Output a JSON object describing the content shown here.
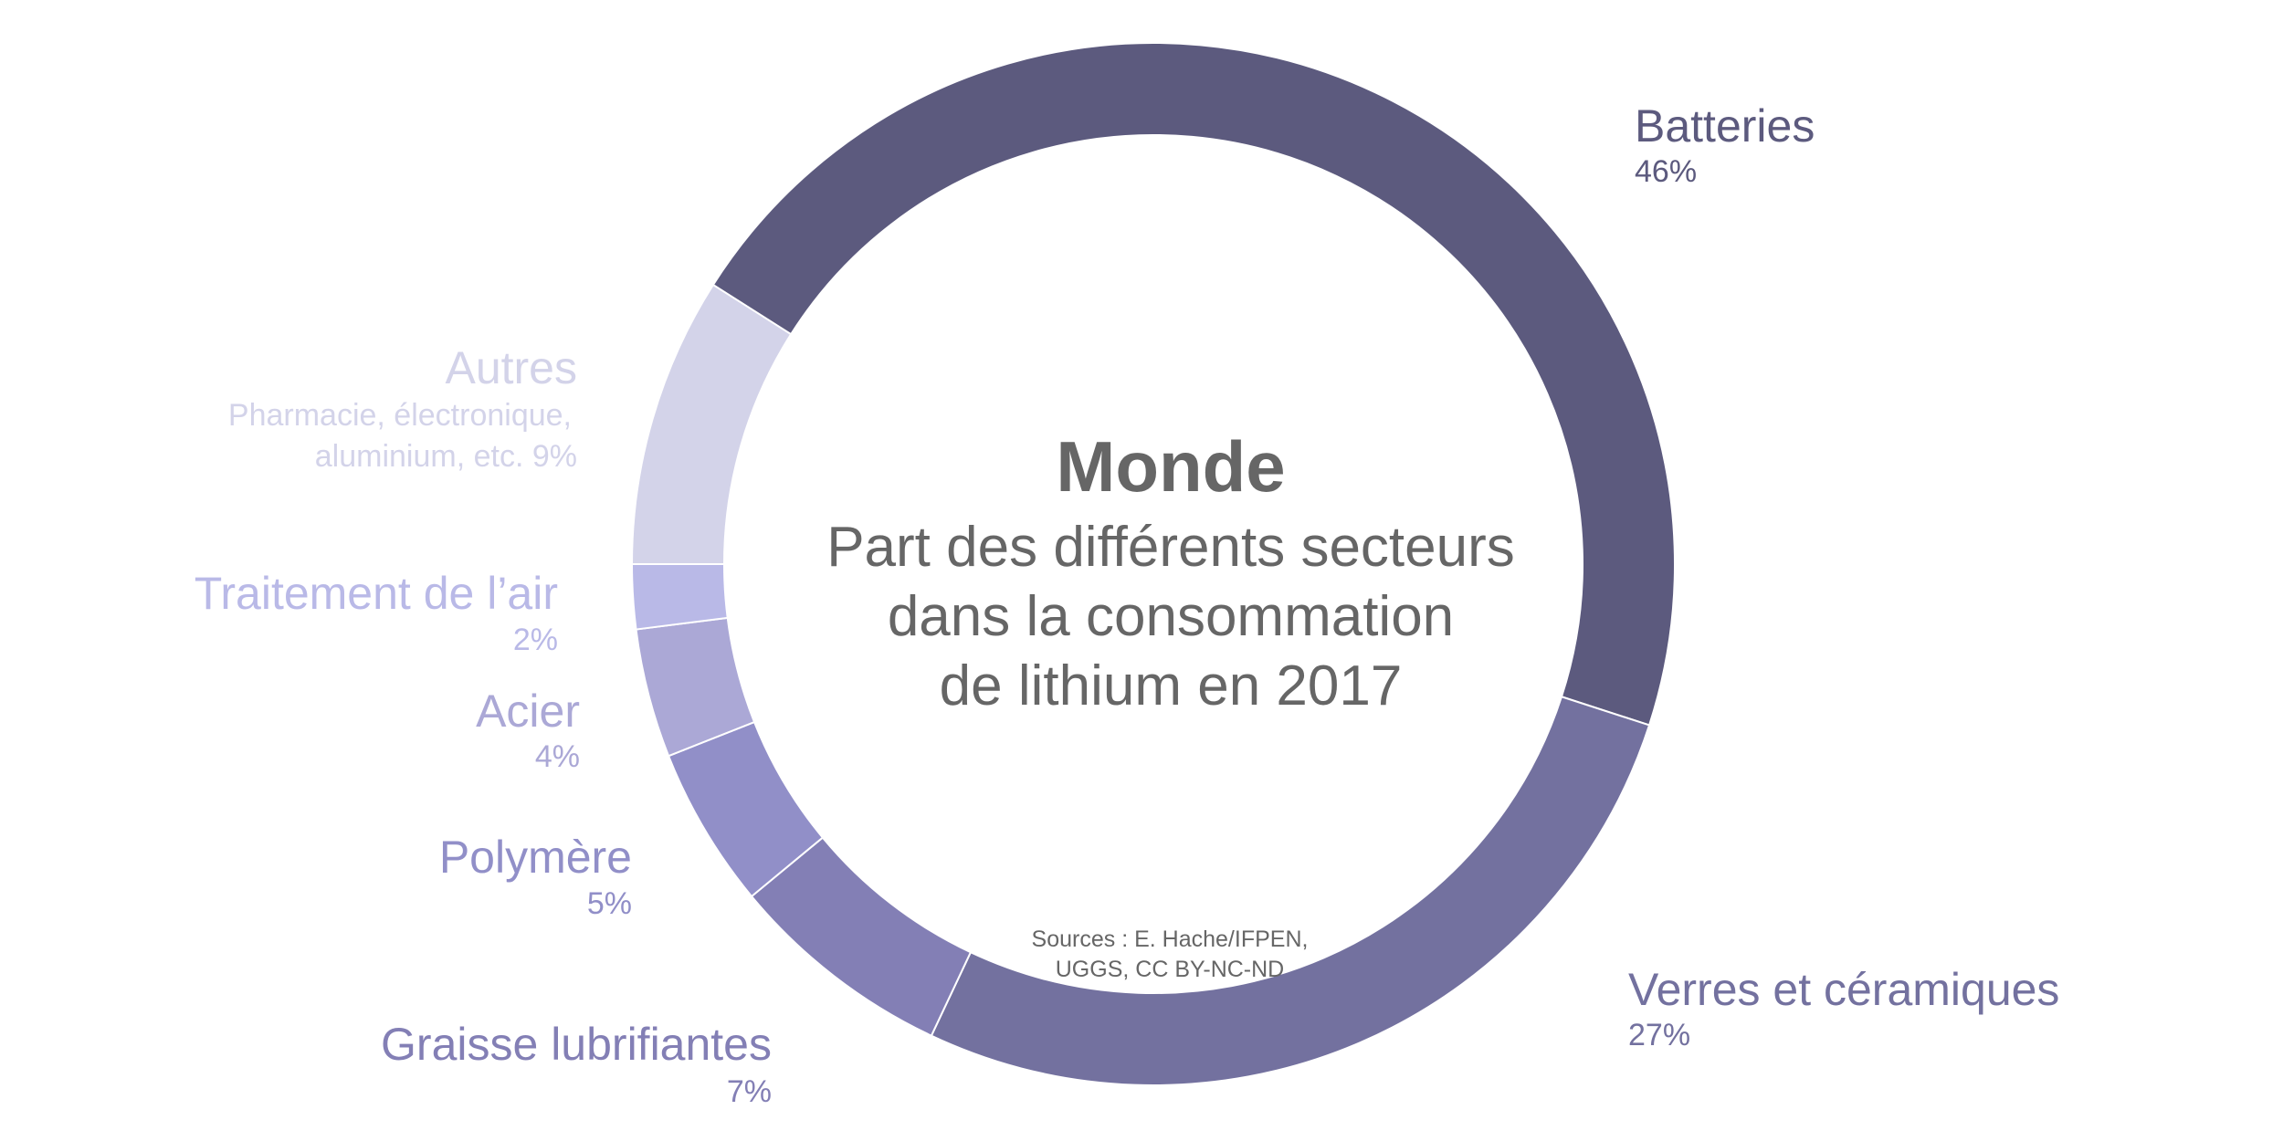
{
  "chart_data": {
    "type": "pie",
    "variant": "donut",
    "title": "Monde",
    "subtitle_lines": [
      "Part des différents secteurs",
      "dans la consommation",
      "de lithium en 2017"
    ],
    "source_lines": [
      "Sources : E. Hache/IFPEN,",
      "UGGS, CC BY-NC-ND"
    ],
    "unit": "%",
    "start_angle_deg": 302.4,
    "direction": "clockwise",
    "slices": [
      {
        "name": "Batteries",
        "value": 46,
        "pct_label": "46%",
        "color": "#5c5a7e"
      },
      {
        "name": "Verres et céramiques",
        "value": 27,
        "pct_label": "27%",
        "color": "#73719f"
      },
      {
        "name": "Graisse lubrifiantes",
        "value": 7,
        "pct_label": "7%",
        "color": "#837fb5"
      },
      {
        "name": "Polymère",
        "value": 5,
        "pct_label": "5%",
        "color": "#918fc8"
      },
      {
        "name": "Acier",
        "value": 4,
        "pct_label": "4%",
        "color": "#aba8d6"
      },
      {
        "name": "Traitement de l’air",
        "value": 2,
        "pct_label": "2%",
        "color": "#b9b9e7"
      },
      {
        "name": "Autres",
        "value": 9,
        "detail_lines": [
          "Pharmacie, électronique,",
          "aluminium, etc. 9%"
        ],
        "color": "#d3d3e9"
      }
    ]
  }
}
